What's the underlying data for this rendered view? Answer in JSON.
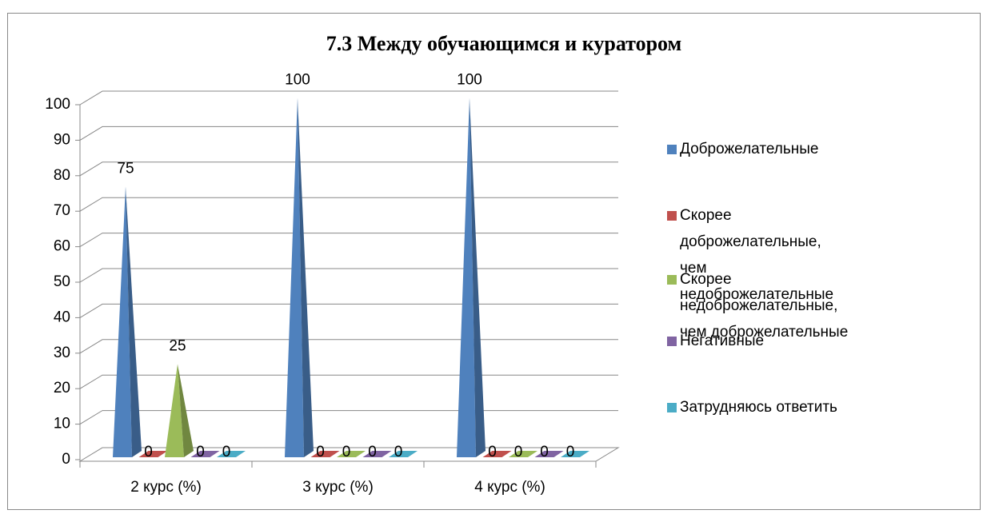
{
  "chart_data": {
    "type": "pyramid3d",
    "title": "7.3 Между обучающимся и куратором",
    "categories": [
      "2 курс (%)",
      "3 курс (%)",
      "4 курс (%)"
    ],
    "series": [
      {
        "name": "Доброжелательные",
        "color": "#4f81bd",
        "values": [
          75,
          100,
          100
        ]
      },
      {
        "name": "Скорее доброжелательные, чем недоброжелательные",
        "color": "#c0504d",
        "values": [
          0,
          0,
          0
        ]
      },
      {
        "name": "Скорее недоброжелательные, чем доброжелательные",
        "color": "#9bbb59",
        "values": [
          25,
          0,
          0
        ]
      },
      {
        "name": "Негативные",
        "color": "#8064a2",
        "values": [
          0,
          0,
          0
        ]
      },
      {
        "name": "Затрудняюсь ответить",
        "color": "#4bacc6",
        "values": [
          0,
          0,
          0
        ]
      }
    ],
    "ylim": [
      0,
      100
    ],
    "yticks": [
      0,
      10,
      20,
      30,
      40,
      50,
      60,
      70,
      80,
      90,
      100
    ],
    "grid": true,
    "legend": "right"
  }
}
